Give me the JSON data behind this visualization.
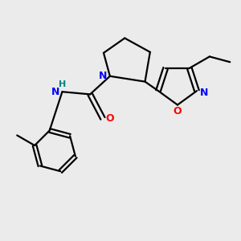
{
  "bg_color": "#ebebeb",
  "bond_color": "#000000",
  "N_color": "#0000ff",
  "O_color": "#ff0000",
  "H_color": "#008080",
  "line_width": 1.6,
  "figsize": [
    3.0,
    3.0
  ],
  "dpi": 100,
  "xlim": [
    -2.8,
    2.8
  ],
  "ylim": [
    -2.8,
    2.8
  ]
}
